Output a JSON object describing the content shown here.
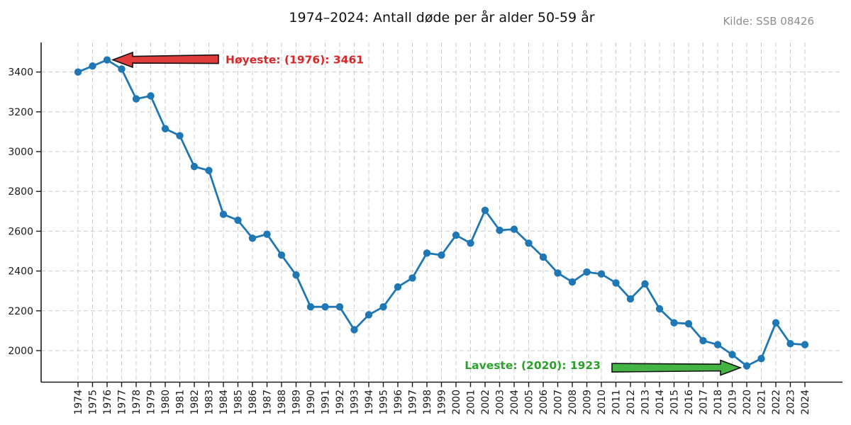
{
  "source": "Kilde: SSB 08426",
  "chart_data": {
    "type": "line",
    "title": "1974–2024: Antall døde per år alder 50-59 år",
    "xlabel": "",
    "ylabel": "",
    "grid": true,
    "legend": false,
    "ylim": [
      1840,
      3550
    ],
    "yticks": [
      2000,
      2200,
      2400,
      2600,
      2800,
      3000,
      3200,
      3400
    ],
    "x": [
      1974,
      1975,
      1976,
      1977,
      1978,
      1979,
      1980,
      1981,
      1982,
      1983,
      1984,
      1985,
      1986,
      1987,
      1988,
      1989,
      1990,
      1991,
      1992,
      1993,
      1994,
      1995,
      1996,
      1997,
      1998,
      1999,
      2000,
      2001,
      2002,
      2003,
      2004,
      2005,
      2006,
      2007,
      2008,
      2009,
      2010,
      2011,
      2012,
      2013,
      2014,
      2015,
      2016,
      2017,
      2018,
      2019,
      2020,
      2021,
      2022,
      2023,
      2024
    ],
    "series": [
      {
        "name": "",
        "color": "#1f77b4",
        "values": [
          3400,
          3430,
          3461,
          3415,
          3265,
          3280,
          3115,
          3080,
          2925,
          2905,
          2685,
          2655,
          2565,
          2585,
          2480,
          2380,
          2220,
          2220,
          2220,
          2105,
          2180,
          2220,
          2320,
          2365,
          2490,
          2480,
          2580,
          2540,
          2705,
          2605,
          2610,
          2540,
          2470,
          2390,
          2345,
          2395,
          2385,
          2340,
          2260,
          2335,
          2210,
          2140,
          2135,
          2050,
          2030,
          1980,
          1923,
          1960,
          2140,
          2035,
          2030
        ]
      }
    ],
    "annotations": {
      "max": {
        "text": "Høyeste: (1976): 3461",
        "year": 1976,
        "value": 3461,
        "text_color": "#d62728",
        "arrow_fill": "#e03c3c",
        "direction": "left"
      },
      "min": {
        "text": "Laveste: (2020): 1923",
        "year": 2020,
        "value": 1923,
        "text_color": "#2ca02c",
        "arrow_fill": "#44b544",
        "direction": "right"
      }
    }
  }
}
